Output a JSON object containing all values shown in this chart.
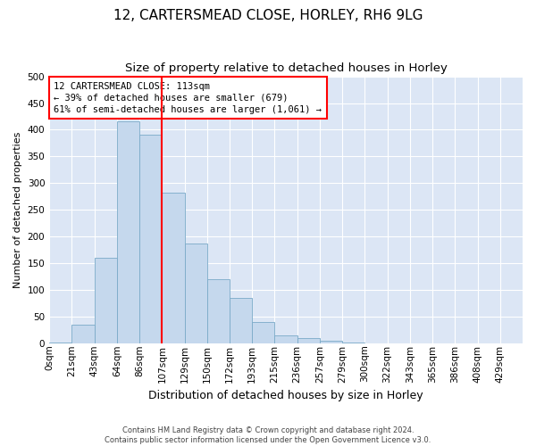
{
  "title": "12, CARTERSMEAD CLOSE, HORLEY, RH6 9LG",
  "subtitle": "Size of property relative to detached houses in Horley",
  "xlabel": "Distribution of detached houses by size in Horley",
  "ylabel": "Number of detached properties",
  "footer_line1": "Contains HM Land Registry data © Crown copyright and database right 2024.",
  "footer_line2": "Contains public sector information licensed under the Open Government Licence v3.0.",
  "bin_labels": [
    "0sqm",
    "21sqm",
    "43sqm",
    "64sqm",
    "86sqm",
    "107sqm",
    "129sqm",
    "150sqm",
    "172sqm",
    "193sqm",
    "215sqm",
    "236sqm",
    "257sqm",
    "279sqm",
    "300sqm",
    "322sqm",
    "343sqm",
    "365sqm",
    "386sqm",
    "408sqm",
    "429sqm"
  ],
  "bar_values": [
    2,
    35,
    160,
    415,
    390,
    283,
    188,
    120,
    85,
    40,
    15,
    10,
    5,
    2,
    1,
    0,
    0,
    0,
    0,
    0,
    0
  ],
  "bar_color": "#c5d8ed",
  "bar_edge_color": "#7aaac8",
  "vline_x": 5,
  "vline_color": "red",
  "annotation_text_line1": "12 CARTERSMEAD CLOSE: 113sqm",
  "annotation_text_line2": "← 39% of detached houses are smaller (679)",
  "annotation_text_line3": "61% of semi-detached houses are larger (1,061) →",
  "annotation_box_color": "white",
  "annotation_box_edge_color": "red",
  "ylim": [
    0,
    500
  ],
  "yticks": [
    0,
    50,
    100,
    150,
    200,
    250,
    300,
    350,
    400,
    450,
    500
  ],
  "plot_bg_color": "#dce6f5",
  "grid_color": "white",
  "title_fontsize": 11,
  "subtitle_fontsize": 9.5,
  "xlabel_fontsize": 9,
  "ylabel_fontsize": 8,
  "tick_fontsize": 7.5,
  "annotation_fontsize": 7.5
}
